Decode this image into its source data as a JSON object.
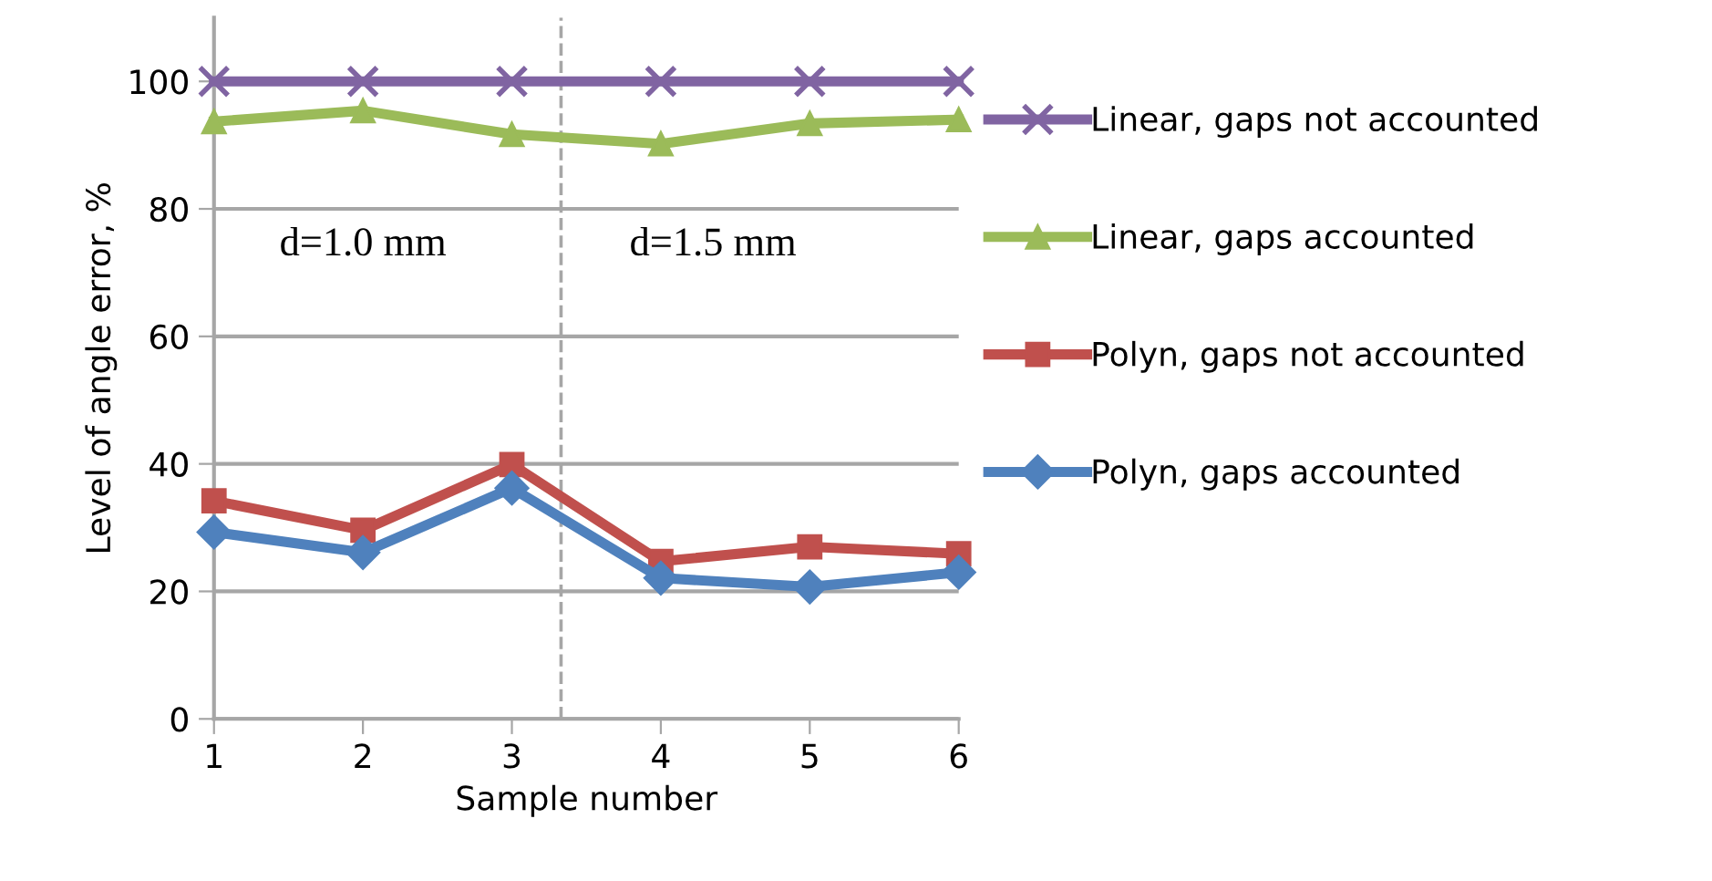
{
  "chart_data": {
    "type": "line",
    "xlabel": "Sample number",
    "ylabel": "Level of angle error, %",
    "x": [
      1,
      2,
      3,
      4,
      5,
      6
    ],
    "xlim": [
      1,
      6
    ],
    "xticks": [
      1,
      2,
      3,
      4,
      5,
      6
    ],
    "ylim": [
      0,
      110
    ],
    "yticks": [
      0,
      20,
      40,
      60,
      80,
      100
    ],
    "grid": "y",
    "legend": "right",
    "line_style": "solid",
    "series": [
      {
        "name": "Linear, gaps not accounted",
        "color": "#8064a2",
        "marker": "cross",
        "values": [
          100,
          100,
          100,
          100,
          100,
          100
        ]
      },
      {
        "name": "Linear, gaps accounted",
        "color": "#9bbb59",
        "marker": "triangle",
        "values": [
          93.7,
          95.4,
          91.7,
          90.2,
          93.4,
          94
        ]
      },
      {
        "name": "Polyn, gaps not accounted",
        "color": "#c0504d",
        "marker": "square",
        "values": [
          34.2,
          29.6,
          39.9,
          24.7,
          27,
          25.9
        ]
      },
      {
        "name": "Polyn, gaps accounted",
        "color": "#4f81bd",
        "marker": "diamond",
        "values": [
          29.3,
          26.1,
          36.2,
          22.1,
          20.7,
          23
        ]
      }
    ],
    "ref_lines": [
      {
        "axis": "x",
        "value": 3.33,
        "color": "#a6a6a6",
        "line_style": "dashed"
      }
    ],
    "annotations": [
      "d=1.0 mm",
      "d=1.5 mm"
    ]
  }
}
